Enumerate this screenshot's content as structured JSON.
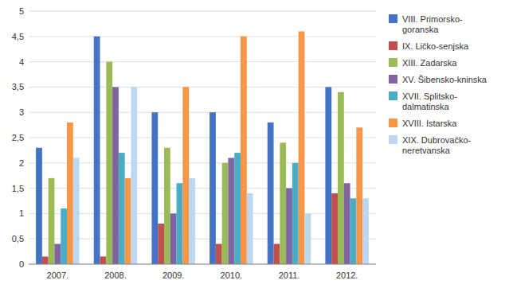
{
  "chart_data": {
    "type": "bar",
    "categories": [
      "2007.",
      "2008.",
      "2009.",
      "2010.",
      "2011.",
      "2012."
    ],
    "series": [
      {
        "name": "VIII. Primorsko-\ngoranska",
        "color": "#4472C4",
        "values": [
          2.3,
          4.5,
          3.0,
          3.0,
          2.8,
          3.5
        ]
      },
      {
        "name": "IX. Ličko-senjska",
        "color": "#C0504D",
        "values": [
          0.15,
          0.15,
          0.8,
          0.4,
          0.4,
          1.4
        ]
      },
      {
        "name": "XIII. Zadarska",
        "color": "#9BBB59",
        "values": [
          1.7,
          4.0,
          2.3,
          2.0,
          2.4,
          3.4
        ]
      },
      {
        "name": "XV. Šibensko-kninska",
        "color": "#8064A2",
        "values": [
          0.4,
          3.5,
          1.0,
          2.1,
          1.5,
          1.6
        ]
      },
      {
        "name": "XVII. Splitsko-\ndalmatinska",
        "color": "#4BACC6",
        "values": [
          1.1,
          2.2,
          1.6,
          2.2,
          2.0,
          1.3
        ]
      },
      {
        "name": "XVIII. Istarska",
        "color": "#F79646",
        "values": [
          2.8,
          1.7,
          3.5,
          4.5,
          4.6,
          2.7
        ]
      },
      {
        "name": "XIX. Dubrovačko-\nneretvanska",
        "color": "#BDD7EE",
        "values": [
          2.1,
          3.5,
          1.7,
          1.4,
          1.0,
          1.3
        ]
      }
    ],
    "ylim": [
      0,
      5
    ],
    "yticks": [
      0,
      {
        "value": 0.5,
        "label": "0,5"
      },
      1,
      {
        "value": 1.5,
        "label": "1,5"
      },
      2,
      {
        "value": 2.5,
        "label": "2,5"
      },
      3,
      {
        "value": 3.5,
        "label": "3,5"
      },
      4,
      {
        "value": 4.5,
        "label": "4,5"
      },
      5
    ],
    "grid": true,
    "legend": "right"
  }
}
